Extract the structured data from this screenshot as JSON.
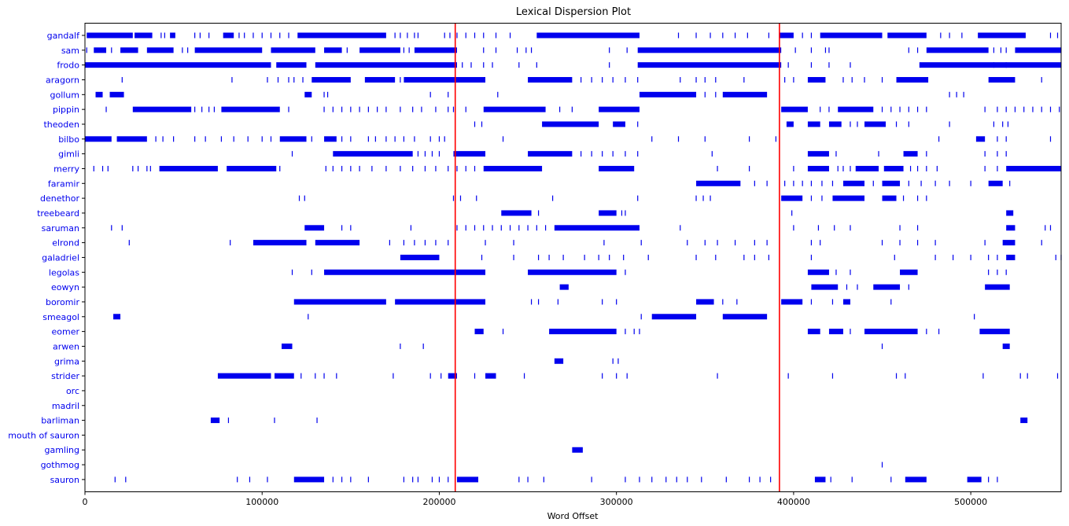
{
  "chart_data": {
    "type": "scatter",
    "title": "Lexical Dispersion Plot",
    "xlabel": "Word Offset",
    "ylabel": "",
    "xlim": [
      0,
      551000
    ],
    "x_ticks": [
      0,
      100000,
      200000,
      300000,
      400000,
      500000
    ],
    "x_tick_labels": [
      "0",
      "100000",
      "200000",
      "300000",
      "400000",
      "500000"
    ],
    "marker": "|",
    "marker_color": "#0000ee",
    "label_color": "#0000ee",
    "vertical_lines": [
      209000,
      392000
    ],
    "vertical_line_color": "#ff0000",
    "grid": false,
    "legend": "none",
    "words": [
      {
        "name": "gandalf",
        "segments": [
          [
            1000,
            27000
          ],
          [
            28000,
            38000
          ],
          [
            48000,
            51000
          ],
          [
            78000,
            84000
          ],
          [
            120000,
            170000
          ],
          [
            255000,
            313000
          ],
          [
            392000,
            400000
          ],
          [
            415000,
            450000
          ],
          [
            453000,
            475000
          ],
          [
            504000,
            531000
          ]
        ],
        "points": [
          30000,
          33000,
          36000,
          43000,
          45000,
          62000,
          65000,
          70000,
          87000,
          90000,
          95000,
          100000,
          105000,
          110000,
          115000,
          175000,
          178000,
          182000,
          186000,
          188000,
          203000,
          206000,
          210000,
          215000,
          220000,
          225000,
          232000,
          240000,
          335000,
          345000,
          353000,
          360000,
          367000,
          374000,
          386000,
          405000,
          410000,
          420000,
          425000,
          483000,
          488000,
          495000,
          545000,
          549000
        ]
      },
      {
        "name": "sam",
        "segments": [
          [
            5000,
            12000
          ],
          [
            20000,
            30000
          ],
          [
            35000,
            50000
          ],
          [
            62000,
            100000
          ],
          [
            105000,
            130000
          ],
          [
            135000,
            145000
          ],
          [
            155000,
            178000
          ],
          [
            186000,
            210000
          ],
          [
            312000,
            393000
          ],
          [
            475000,
            510000
          ],
          [
            525000,
            551000
          ]
        ],
        "points": [
          1000,
          15000,
          55000,
          58000,
          148000,
          180000,
          183000,
          225000,
          232000,
          244000,
          249000,
          252000,
          296000,
          306000,
          401000,
          410000,
          418000,
          420000,
          465000,
          470000,
          513000,
          517000,
          520000
        ]
      },
      {
        "name": "frodo",
        "segments": [
          [
            0,
            105000
          ],
          [
            108000,
            125000
          ],
          [
            130000,
            210000
          ],
          [
            312000,
            393000
          ],
          [
            471000,
            551000
          ]
        ],
        "points": [
          213000,
          218000,
          225000,
          230000,
          245000,
          255000,
          296000,
          397000,
          410000,
          420000,
          432000,
          513000,
          520000
        ]
      },
      {
        "name": "aragorn",
        "segments": [
          [
            128000,
            150000
          ],
          [
            158000,
            175000
          ],
          [
            180000,
            226000
          ],
          [
            250000,
            275000
          ],
          [
            408000,
            418000
          ],
          [
            458000,
            476000
          ],
          [
            510000,
            525000
          ]
        ],
        "points": [
          21000,
          83000,
          103000,
          109000,
          115000,
          118000,
          123000,
          178000,
          280000,
          286000,
          292000,
          298000,
          305000,
          312000,
          336000,
          345000,
          350000,
          356000,
          372000,
          395000,
          400000,
          428000,
          433000,
          440000,
          450000,
          540000
        ]
      },
      {
        "name": "gollum",
        "segments": [
          [
            6000,
            10000
          ],
          [
            14000,
            22000
          ],
          [
            124000,
            128000
          ],
          [
            313000,
            345000
          ],
          [
            360000,
            385000
          ]
        ],
        "points": [
          135000,
          137000,
          195000,
          205000,
          233000,
          350000,
          356000,
          488000,
          492000,
          496000
        ]
      },
      {
        "name": "pippin",
        "segments": [
          [
            27000,
            60000
          ],
          [
            77000,
            110000
          ],
          [
            225000,
            260000
          ],
          [
            290000,
            313000
          ],
          [
            393000,
            408000
          ],
          [
            425000,
            445000
          ]
        ],
        "points": [
          12000,
          62000,
          66000,
          70000,
          73000,
          115000,
          135000,
          140000,
          145000,
          150000,
          155000,
          160000,
          165000,
          170000,
          178000,
          185000,
          190000,
          198000,
          205000,
          208000,
          215000,
          268000,
          275000,
          415000,
          420000,
          450000,
          455000,
          460000,
          465000,
          470000,
          475000,
          508000,
          515000,
          520000,
          525000,
          530000,
          535000,
          540000,
          545000,
          550000
        ]
      },
      {
        "name": "theoden",
        "segments": [
          [
            258000,
            290000
          ],
          [
            298000,
            305000
          ],
          [
            396000,
            400000
          ],
          [
            408000,
            415000
          ],
          [
            420000,
            427000
          ],
          [
            440000,
            452000
          ]
        ],
        "points": [
          220000,
          224000,
          312000,
          432000,
          436000,
          458000,
          465000,
          488000,
          513000,
          518000,
          521000
        ]
      },
      {
        "name": "bilbo",
        "segments": [
          [
            0,
            15000
          ],
          [
            18000,
            35000
          ],
          [
            110000,
            125000
          ],
          [
            135000,
            142000
          ],
          [
            503000,
            508000
          ]
        ],
        "points": [
          40000,
          44000,
          50000,
          62000,
          68000,
          77000,
          84000,
          92000,
          100000,
          105000,
          128000,
          145000,
          150000,
          160000,
          164000,
          170000,
          175000,
          180000,
          186000,
          195000,
          200000,
          203000,
          236000,
          320000,
          335000,
          350000,
          375000,
          390000,
          482000,
          515000,
          520000,
          545000
        ]
      },
      {
        "name": "gimli",
        "segments": [
          [
            140000,
            185000
          ],
          [
            208000,
            226000
          ],
          [
            250000,
            275000
          ],
          [
            408000,
            420000
          ],
          [
            462000,
            470000
          ]
        ],
        "points": [
          117000,
          188000,
          192000,
          196000,
          200000,
          280000,
          286000,
          292000,
          298000,
          305000,
          312000,
          354000,
          424000,
          448000,
          475000,
          508000,
          515000,
          520000
        ]
      },
      {
        "name": "merry",
        "segments": [
          [
            42000,
            75000
          ],
          [
            80000,
            108000
          ],
          [
            225000,
            258000
          ],
          [
            290000,
            310000
          ],
          [
            408000,
            420000
          ],
          [
            435000,
            448000
          ],
          [
            451000,
            462000
          ],
          [
            520000,
            551000
          ]
        ],
        "points": [
          5000,
          10000,
          13000,
          27000,
          30000,
          35000,
          37000,
          110000,
          136000,
          140000,
          145000,
          150000,
          155000,
          162000,
          170000,
          178000,
          185000,
          192000,
          198000,
          205000,
          210000,
          215000,
          220000,
          357000,
          375000,
          400000,
          425000,
          428000,
          432000,
          466000,
          470000,
          475000,
          481000,
          508000,
          515000
        ]
      },
      {
        "name": "faramir",
        "segments": [
          [
            345000,
            370000
          ],
          [
            428000,
            440000
          ],
          [
            450000,
            460000
          ],
          [
            510000,
            518000
          ]
        ],
        "points": [
          378000,
          385000,
          395000,
          400000,
          405000,
          410000,
          416000,
          422000,
          445000,
          465000,
          472000,
          480000,
          488000,
          500000,
          522000
        ]
      },
      {
        "name": "denethor",
        "segments": [
          [
            393000,
            405000
          ],
          [
            422000,
            440000
          ],
          [
            450000,
            458000
          ]
        ],
        "points": [
          121000,
          124000,
          208000,
          212000,
          221000,
          264000,
          312000,
          345000,
          349000,
          353000,
          410000,
          416000,
          462000,
          470000,
          475000
        ]
      },
      {
        "name": "treebeard",
        "segments": [
          [
            235000,
            252000
          ],
          [
            290000,
            300000
          ],
          [
            520000,
            524000
          ]
        ],
        "points": [
          256000,
          303000,
          305000,
          399000
        ]
      },
      {
        "name": "saruman",
        "segments": [
          [
            124000,
            135000
          ],
          [
            265000,
            313000
          ],
          [
            520000,
            525000
          ]
        ],
        "points": [
          15000,
          21000,
          145000,
          150000,
          184000,
          210000,
          215000,
          220000,
          225000,
          230000,
          235000,
          240000,
          245000,
          250000,
          255000,
          260000,
          336000,
          400000,
          414000,
          423000,
          432000,
          460000,
          470000,
          542000,
          545000
        ]
      },
      {
        "name": "elrond",
        "segments": [
          [
            95000,
            125000
          ],
          [
            130000,
            155000
          ],
          [
            518000,
            525000
          ]
        ],
        "points": [
          25000,
          82000,
          172000,
          180000,
          186000,
          192000,
          198000,
          205000,
          226000,
          242000,
          293000,
          314000,
          340000,
          350000,
          357000,
          367000,
          378000,
          385000,
          410000,
          415000,
          450000,
          460000,
          470000,
          480000,
          508000,
          540000
        ]
      },
      {
        "name": "galadriel",
        "segments": [
          [
            178000,
            200000
          ],
          [
            520000,
            525000
          ]
        ],
        "points": [
          224000,
          242000,
          256000,
          262000,
          270000,
          282000,
          290000,
          296000,
          304000,
          318000,
          345000,
          356000,
          372000,
          378000,
          386000,
          410000,
          457000,
          480000,
          490000,
          500000,
          510000,
          515000,
          548000,
          551000
        ]
      },
      {
        "name": "legolas",
        "segments": [
          [
            135000,
            226000
          ],
          [
            250000,
            300000
          ],
          [
            408000,
            420000
          ],
          [
            460000,
            470000
          ]
        ],
        "points": [
          117000,
          128000,
          305000,
          424000,
          432000,
          510000,
          515000,
          520000
        ]
      },
      {
        "name": "eowyn",
        "segments": [
          [
            268000,
            273000
          ],
          [
            410000,
            425000
          ],
          [
            445000,
            460000
          ],
          [
            508000,
            522000
          ]
        ],
        "points": [
          430000,
          436000,
          465000
        ]
      },
      {
        "name": "boromir",
        "segments": [
          [
            118000,
            170000
          ],
          [
            175000,
            226000
          ],
          [
            345000,
            355000
          ],
          [
            393000,
            405000
          ],
          [
            428000,
            432000
          ]
        ],
        "points": [
          252000,
          256000,
          267000,
          292000,
          300000,
          360000,
          368000,
          410000,
          422000,
          455000
        ]
      },
      {
        "name": "smeagol",
        "segments": [
          [
            16000,
            20000
          ],
          [
            320000,
            345000
          ],
          [
            360000,
            385000
          ]
        ],
        "points": [
          126000,
          314000,
          502000
        ]
      },
      {
        "name": "eomer",
        "segments": [
          [
            220000,
            225000
          ],
          [
            262000,
            300000
          ],
          [
            408000,
            415000
          ],
          [
            420000,
            428000
          ],
          [
            440000,
            470000
          ],
          [
            505000,
            522000
          ]
        ],
        "points": [
          236000,
          305000,
          310000,
          313000,
          432000,
          475000,
          482000
        ]
      },
      {
        "name": "arwen",
        "segments": [
          [
            111000,
            117000
          ],
          [
            518000,
            522000
          ]
        ],
        "points": [
          178000,
          191000,
          450000
        ]
      },
      {
        "name": "grima",
        "segments": [
          [
            265000,
            270000
          ]
        ],
        "points": [
          298000,
          301000
        ]
      },
      {
        "name": "strider",
        "segments": [
          [
            75000,
            105000
          ],
          [
            107000,
            118000
          ],
          [
            205000,
            210000
          ],
          [
            226000,
            232000
          ]
        ],
        "points": [
          122000,
          130000,
          135000,
          142000,
          174000,
          195000,
          201000,
          220000,
          248000,
          292000,
          300000,
          306000,
          357000,
          397000,
          422000,
          458000,
          463000,
          507000,
          528000,
          532000,
          549000
        ]
      },
      {
        "name": "orc",
        "segments": [],
        "points": []
      },
      {
        "name": "madril",
        "segments": [],
        "points": []
      },
      {
        "name": "barliman",
        "segments": [
          [
            71000,
            76000
          ],
          [
            528000,
            532000
          ]
        ],
        "points": [
          81000,
          107000,
          131000
        ]
      },
      {
        "name": "mouth of sauron",
        "segments": [],
        "points": []
      },
      {
        "name": "gamling",
        "segments": [
          [
            275000,
            281000
          ]
        ],
        "points": []
      },
      {
        "name": "gothmog",
        "segments": [],
        "points": [
          450000
        ]
      },
      {
        "name": "sauron",
        "segments": [
          [
            118000,
            135000
          ],
          [
            210000,
            222000
          ],
          [
            412000,
            418000
          ],
          [
            463000,
            475000
          ],
          [
            498000,
            506000
          ]
        ],
        "points": [
          17000,
          23000,
          86000,
          93000,
          103000,
          140000,
          145000,
          150000,
          160000,
          180000,
          185000,
          188000,
          196000,
          200000,
          205000,
          245000,
          250000,
          259000,
          286000,
          305000,
          313000,
          320000,
          328000,
          334000,
          340000,
          348000,
          362000,
          375000,
          381000,
          387000,
          421000,
          433000,
          455000,
          510000,
          515000
        ]
      }
    ]
  }
}
